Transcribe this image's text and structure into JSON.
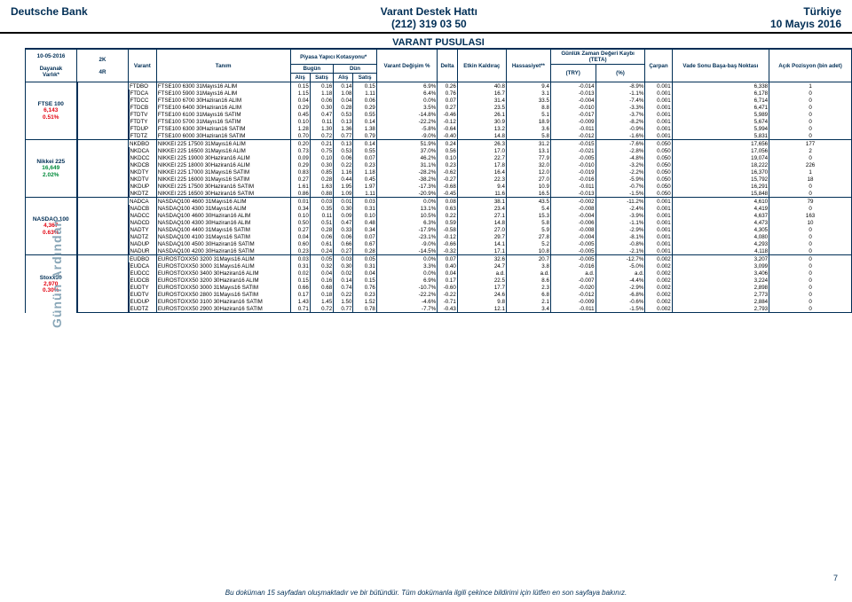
{
  "header": {
    "left": "Deutsche Bank",
    "center_line1": "Varant Destek Hattı",
    "center_line2": "(212) 319 03 50",
    "right_line1": "Türkiye",
    "right_line2": "10 Mayıs 2016"
  },
  "side_label": "Günün Ardından",
  "table_title": "VARANT PUSULASI",
  "footer_text": "Bu doküman 15 sayfadan oluşmaktadır ve bir bütündür. Tüm dokümanla ilgili çekince bildirimi için lütfen en son sayfaya bakınız.",
  "page_number": "7",
  "date_cell": "10-05-2016",
  "header_labels": {
    "twok": "2K",
    "fourr": "4R",
    "dayanak": "Dayanak",
    "varlik": "Varlık*",
    "varant": "Varant",
    "tanim": "Tanım",
    "piyasa": "Piyasa Yapıcı Kotasyonu*",
    "bugun": "Bugün",
    "dun": "Dün",
    "alis": "Alış",
    "satis": "Satış",
    "degisim": "Varant Değişim %",
    "delta": "Delta",
    "etkin": "Etkin Kaldıraç",
    "hassasiyet": "Hassasiyet**",
    "gunluk": "Günlük Zaman Değeri Kaybı",
    "teta": "(TETA)",
    "carpan": "Çarpan",
    "vadesonu": "Vade Sonu Başa-baş Noktası",
    "acik": "Açık Pozisyon (bin adet)",
    "try": "(TRY)",
    "pct": "(%)"
  },
  "groups": [
    {
      "labels": [
        "FTSE 100",
        "6,143",
        "0.51%"
      ],
      "colors": [
        "#002e55",
        "#e30613",
        "#e30613"
      ],
      "rows": [
        [
          "FTDBO",
          "FTSE100 6300 31Mayıs16 ALIM",
          "0.15",
          "0.16",
          "0.14",
          "0.15",
          "6.9%",
          "0.26",
          "40.8",
          "9.4",
          "-0.014",
          "-8.9%",
          "0.001",
          "6,338",
          "1"
        ],
        [
          "FTDCA",
          "FTSE100 5900 31Mayıs16 ALIM",
          "1.15",
          "1.18",
          "1.08",
          "1.11",
          "6.4%",
          "0.76",
          "16.7",
          "3.1",
          "-0.013",
          "-1.1%",
          "0.001",
          "6,178",
          "0"
        ],
        [
          "FTDCC",
          "FTSE100 6700 30Haziran16 ALIM",
          "0.04",
          "0.06",
          "0.04",
          "0.06",
          "0.0%",
          "0.07",
          "31.4",
          "33.5",
          "-0.004",
          "-7.4%",
          "0.001",
          "6,714",
          "0"
        ],
        [
          "FTDCB",
          "FTSE100 6400 30Haziran16 ALIM",
          "0.29",
          "0.30",
          "0.28",
          "0.29",
          "3.5%",
          "0.27",
          "23.5",
          "8.8",
          "-0.010",
          "-3.3%",
          "0.001",
          "6,471",
          "0"
        ],
        [
          "FTDTV",
          "FTSE100 6100 31Mayıs16 SATIM",
          "0.45",
          "0.47",
          "0.53",
          "0.55",
          "-14.8%",
          "-0.46",
          "26.1",
          "5.1",
          "-0.017",
          "-3.7%",
          "0.001",
          "5,989",
          "0"
        ],
        [
          "FTDTY",
          "FTSE100 5700 31Mayıs16 SATIM",
          "0.10",
          "0.11",
          "0.13",
          "0.14",
          "-22.2%",
          "-0.12",
          "30.9",
          "18.9",
          "-0.009",
          "-8.2%",
          "0.001",
          "5,674",
          "0"
        ],
        [
          "FTDUP",
          "FTSE100 6300 30Haziran16 SATIM",
          "1.28",
          "1.30",
          "1.36",
          "1.38",
          "-5.8%",
          "-0.64",
          "13.2",
          "3.6",
          "-0.011",
          "-0.9%",
          "0.001",
          "5,994",
          "0"
        ],
        [
          "FTDTZ",
          "FTSE100 6000 30Haziran16 SATIM",
          "0.70",
          "0.72",
          "0.77",
          "0.79",
          "-9.0%",
          "-0.40",
          "14.8",
          "5.8",
          "-0.012",
          "-1.6%",
          "0.001",
          "5,831",
          "0"
        ]
      ]
    },
    {
      "labels": [
        "Nikkei 225",
        "16,649",
        "2.02%"
      ],
      "colors": [
        "#002e55",
        "#008a3a",
        "#008a3a"
      ],
      "rows": [
        [
          "NKDBO",
          "NIKKEI 225 17500 31Mayıs16 ALIM",
          "0.20",
          "0.21",
          "0.13",
          "0.14",
          "51.9%",
          "0.24",
          "26.3",
          "31.2",
          "-0.015",
          "-7.6%",
          "0.050",
          "17,656",
          "177"
        ],
        [
          "NKDCA",
          "NIKKEI 225 16500 31Mayıs16 ALIM",
          "0.73",
          "0.75",
          "0.53",
          "0.55",
          "37.0%",
          "0.56",
          "17.0",
          "13.1",
          "-0.021",
          "-2.8%",
          "0.050",
          "17,056",
          "2"
        ],
        [
          "NKDCC",
          "NIKKEI 225 19000 30Haziran16 ALIM",
          "0.09",
          "0.10",
          "0.06",
          "0.07",
          "46.2%",
          "0.10",
          "22.7",
          "77.9",
          "-0.005",
          "-4.8%",
          "0.050",
          "19,074",
          "0"
        ],
        [
          "NKDCB",
          "NIKKEI 225 18000 30Haziran16 ALIM",
          "0.29",
          "0.30",
          "0.22",
          "0.23",
          "31.1%",
          "0.23",
          "17.8",
          "32.0",
          "-0.010",
          "-3.2%",
          "0.050",
          "18,222",
          "226"
        ],
        [
          "NKDTY",
          "NIKKEI 225 17000 31Mayıs16 SATIM",
          "0.83",
          "0.85",
          "1.16",
          "1.18",
          "-28.2%",
          "-0.62",
          "16.4",
          "12.0",
          "-0.019",
          "-2.2%",
          "0.050",
          "16,370",
          "1"
        ],
        [
          "NKDTV",
          "NIKKEI 225 16000 31Mayıs16 SATIM",
          "0.27",
          "0.28",
          "0.44",
          "0.45",
          "-38.2%",
          "-0.27",
          "22.3",
          "27.0",
          "-0.016",
          "-5.9%",
          "0.050",
          "15,792",
          "18"
        ],
        [
          "NKDUP",
          "NIKKEI 225 17500 30Haziran16 SATIM",
          "1.61",
          "1.63",
          "1.95",
          "1.97",
          "-17.3%",
          "-0.68",
          "9.4",
          "10.9",
          "-0.011",
          "-0.7%",
          "0.050",
          "16,291",
          "0"
        ],
        [
          "NKDTZ",
          "NIKKEI 225 16500 30Haziran16 SATIM",
          "0.86",
          "0.88",
          "1.09",
          "1.11",
          "-20.9%",
          "-0.45",
          "11.6",
          "16.5",
          "-0.013",
          "-1.5%",
          "0.050",
          "15,848",
          "0"
        ]
      ]
    },
    {
      "labels": [
        "NASDAQ 100",
        "4,367",
        "0.63%"
      ],
      "colors": [
        "#002e55",
        "#e30613",
        "#e30613"
      ],
      "rows": [
        [
          "NADCA",
          "NASDAQ100 4600 31Mayıs16 ALIM",
          "0.01",
          "0.03",
          "0.01",
          "0.03",
          "0.0%",
          "0.08",
          "38.1",
          "43.5",
          "-0.002",
          "-11.2%",
          "0.001",
          "4,610",
          "79"
        ],
        [
          "NADCB",
          "NASDAQ100 4300 31Mayıs16 ALIM",
          "0.34",
          "0.35",
          "0.30",
          "0.31",
          "13.1%",
          "0.63",
          "23.4",
          "5.4",
          "-0.008",
          "-2.4%",
          "0.001",
          "4,419",
          "0"
        ],
        [
          "NADCC",
          "NASDAQ100 4600 30Haziran16 ALIM",
          "0.10",
          "0.11",
          "0.09",
          "0.10",
          "10.5%",
          "0.22",
          "27.1",
          "15.3",
          "-0.004",
          "-3.9%",
          "0.001",
          "4,637",
          "163"
        ],
        [
          "NADCD",
          "NASDAQ100 4300 30Haziran16 ALIM",
          "0.50",
          "0.51",
          "0.47",
          "0.48",
          "6.3%",
          "0.59",
          "14.8",
          "5.8",
          "-0.006",
          "-1.1%",
          "0.001",
          "4,473",
          "10"
        ],
        [
          "NADTY",
          "NASDAQ100 4400 31Mayıs16 SATIM",
          "0.27",
          "0.28",
          "0.33",
          "0.34",
          "-17.9%",
          "-0.58",
          "27.0",
          "5.9",
          "-0.008",
          "-2.9%",
          "0.001",
          "4,305",
          "0"
        ],
        [
          "NADTZ",
          "NASDAQ100 4100 31Mayıs16 SATIM",
          "0.04",
          "0.06",
          "0.06",
          "0.07",
          "-23.1%",
          "-0.12",
          "29.7",
          "27.8",
          "-0.004",
          "-8.1%",
          "0.001",
          "4,080",
          "0"
        ],
        [
          "NADUP",
          "NASDAQ100 4500 30Haziran16 SATIM",
          "0.60",
          "0.61",
          "0.66",
          "0.67",
          "-9.0%",
          "-0.66",
          "14.1",
          "5.2",
          "-0.005",
          "-0.8%",
          "0.001",
          "4,293",
          "0"
        ],
        [
          "NADUR",
          "NASDAQ100 4200 30Haziran16 SATIM",
          "0.23",
          "0.24",
          "0.27",
          "0.28",
          "-14.5%",
          "-0.32",
          "17.1",
          "10.8",
          "-0.005",
          "-2.1%",
          "0.001",
          "4,118",
          "0"
        ]
      ]
    },
    {
      "labels": [
        "Stoxx50",
        "2,970",
        "0.30%"
      ],
      "colors": [
        "#002e55",
        "#e30613",
        "#e30613"
      ],
      "rows": [
        [
          "EUDBO",
          "EUROSTOXX50 3200 31Mayıs16 ALIM",
          "0.03",
          "0.05",
          "0.03",
          "0.05",
          "0.0%",
          "0.07",
          "32.6",
          "20.7",
          "-0.005",
          "-12.7%",
          "0.002",
          "3,207",
          "0"
        ],
        [
          "EUDCA",
          "EUROSTOXX50 3000 31Mayıs16 ALIM",
          "0.31",
          "0.32",
          "0.30",
          "0.31",
          "3.3%",
          "0.40",
          "24.7",
          "3.8",
          "-0.016",
          "-5.0%",
          "0.002",
          "3,099",
          "0"
        ],
        [
          "EUDCC",
          "EUROSTOXX50 3400 30Haziran16 ALIM",
          "0.02",
          "0.04",
          "0.02",
          "0.04",
          "0.0%",
          "0.04",
          "a.d.",
          "a.d.",
          "a.d.",
          "a.d.",
          "0.002",
          "3,406",
          "0"
        ],
        [
          "EUDCB",
          "EUROSTOXX50 3200 30Haziran16 ALIM",
          "0.15",
          "0.16",
          "0.14",
          "0.15",
          "6.9%",
          "0.17",
          "22.5",
          "8.6",
          "-0.007",
          "-4.4%",
          "0.002",
          "3,224",
          "0"
        ],
        [
          "EUDTY",
          "EUROSTOXX50 3000 31Mayıs16 SATIM",
          "0.66",
          "0.68",
          "0.74",
          "0.76",
          "-10.7%",
          "-0.60",
          "17.7",
          "2.3",
          "-0.020",
          "-2.9%",
          "0.002",
          "2,898",
          "0"
        ],
        [
          "EUDTV",
          "EUROSTOXX50 2800 31Mayıs16 SATIM",
          "0.17",
          "0.18",
          "0.22",
          "0.23",
          "-22.2%",
          "-0.22",
          "24.6",
          "6.8",
          "-0.012",
          "-6.8%",
          "0.002",
          "2,773",
          "0"
        ],
        [
          "EUDUP",
          "EUROSTOXX50 3100 30Haziran16 SATIM",
          "1.43",
          "1.45",
          "1.50",
          "1.52",
          "-4.6%",
          "-0.71",
          "9.8",
          "2.1",
          "-0.009",
          "-0.6%",
          "0.002",
          "2,884",
          "0"
        ],
        [
          "EUDTZ",
          "EUROSTOXX50 2900 30Haziran16 SATIM",
          "0.71",
          "0.72",
          "0.77",
          "0.78",
          "-7.7%",
          "-0.43",
          "12.1",
          "3.4",
          "-0.011",
          "-1.5%",
          "0.002",
          "2,793",
          "0"
        ]
      ]
    }
  ]
}
